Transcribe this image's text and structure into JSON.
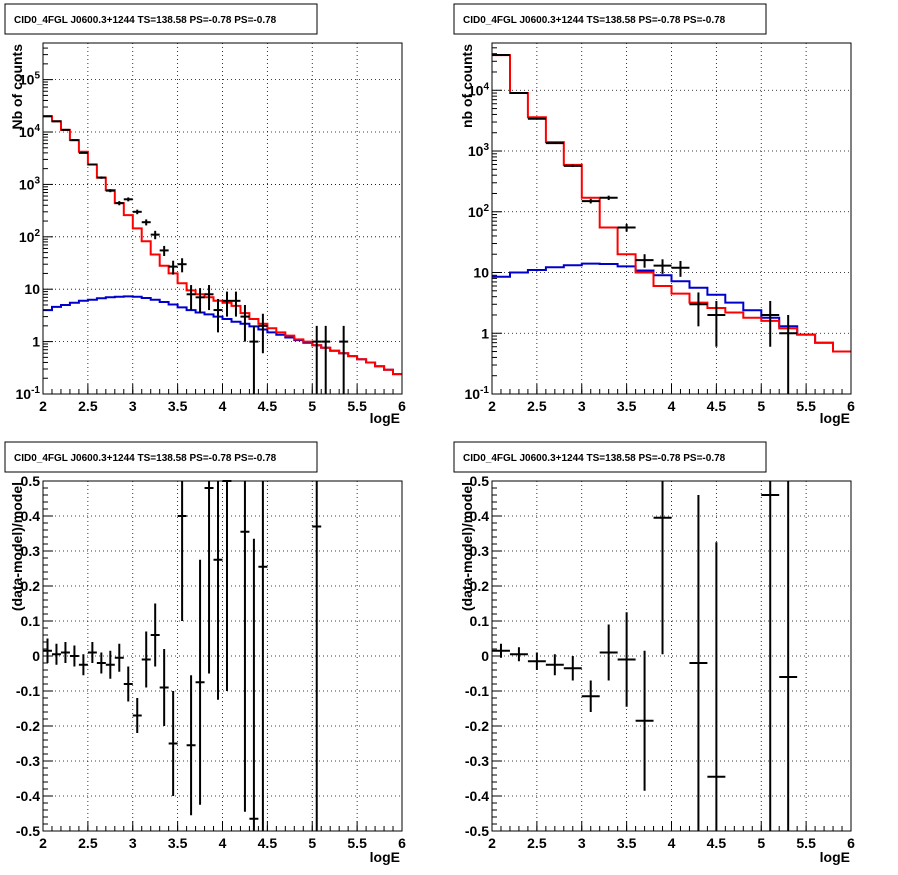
{
  "colors": {
    "data": "#000000",
    "total_model": "#ff0000",
    "background_model": "#0000cc"
  },
  "chart_data": [
    {
      "type": "line",
      "scale": "log",
      "title": "CID0_4FGL J0600.3+1244 TS=138.58 PS=-0.78 PS=-0.78",
      "xlabel": "logE",
      "ylabel": "Nb of counts",
      "xlim": [
        2,
        6
      ],
      "ylim": [
        0.1,
        500000
      ],
      "xticks": [
        "2",
        "2.5",
        "3",
        "3.5",
        "4",
        "4.5",
        "5",
        "5.5",
        "6"
      ],
      "yticks": [
        "10^-1",
        "1",
        "10",
        "10^2",
        "10^3",
        "10^4",
        "10^5"
      ],
      "grid": true,
      "bin_edges": [
        2,
        2.1,
        2.2,
        2.3,
        2.4,
        2.5,
        2.6,
        2.7,
        2.8,
        2.9,
        3,
        3.1,
        3.2,
        3.3,
        3.4,
        3.5,
        3.6,
        3.7,
        3.8,
        3.9,
        4,
        4.1,
        4.2,
        4.3,
        4.4,
        4.5,
        4.6,
        4.7,
        4.8,
        4.9,
        5,
        5.1,
        5.2,
        5.3,
        5.4,
        5.5,
        5.6,
        5.7,
        5.8,
        5.9,
        6
      ],
      "series": [
        {
          "role": "background_model",
          "values": [
            4,
            4.6,
            5,
            5.5,
            6,
            6.3,
            6.7,
            7,
            7.2,
            7.3,
            7.2,
            6.8,
            6.3,
            5.7,
            5.1,
            4.5,
            4,
            3.6,
            3.3,
            3,
            2.7,
            2.4,
            2.2,
            1.95,
            1.7,
            1.5,
            1.35,
            1.2,
            1.07,
            0.95,
            0.85,
            0.76,
            0.67,
            0.6,
            0.53,
            0.46,
            0.4,
            0.34,
            0.29,
            0.24
          ]
        },
        {
          "role": "total_model",
          "values": [
            20000,
            16000,
            11000,
            7000,
            4200,
            2400,
            1350,
            780,
            440,
            260,
            145,
            82,
            46,
            28,
            20,
            13,
            9.5,
            8,
            7,
            6,
            5.5,
            4.8,
            3.5,
            2.7,
            2.2,
            1.8,
            1.5,
            1.3,
            1.1,
            1,
            0.85,
            0.76,
            0.67,
            0.6,
            0.53,
            0.46,
            0.4,
            0.34,
            0.29,
            0.24
          ]
        },
        {
          "role": "data",
          "points": [
            {
              "x": 2.05,
              "y": 20000,
              "err": 300
            },
            {
              "x": 2.15,
              "y": 16000,
              "err": 250
            },
            {
              "x": 2.25,
              "y": 11000,
              "err": 200
            },
            {
              "x": 2.35,
              "y": 7000,
              "err": 160
            },
            {
              "x": 2.45,
              "y": 4000,
              "err": 120
            },
            {
              "x": 2.55,
              "y": 2400,
              "err": 90
            },
            {
              "x": 2.65,
              "y": 1350,
              "err": 70
            },
            {
              "x": 2.75,
              "y": 760,
              "err": 50
            },
            {
              "x": 2.85,
              "y": 440,
              "err": 40
            },
            {
              "x": 2.95,
              "y": 520,
              "err": 45
            },
            {
              "x": 3.05,
              "y": 300,
              "err": 30
            },
            {
              "x": 3.15,
              "y": 190,
              "err": 25
            },
            {
              "x": 3.25,
              "y": 110,
              "err": 20
            },
            {
              "x": 3.35,
              "y": 55,
              "err": 12
            },
            {
              "x": 3.45,
              "y": 27,
              "err": 8
            },
            {
              "x": 3.55,
              "y": 30,
              "err": 9
            },
            {
              "x": 3.65,
              "y": 8,
              "err": 4
            },
            {
              "x": 3.75,
              "y": 7,
              "err": 3.5
            },
            {
              "x": 3.85,
              "y": 8,
              "err": 4
            },
            {
              "x": 3.95,
              "y": 4,
              "err": 2.5
            },
            {
              "x": 4.05,
              "y": 6,
              "err": 3
            },
            {
              "x": 4.15,
              "y": 6,
              "err": 3
            },
            {
              "x": 4.25,
              "y": 3,
              "err": 2
            },
            {
              "x": 4.35,
              "y": 1,
              "err": 1
            },
            {
              "x": 4.45,
              "y": 2,
              "err": 1.4
            },
            {
              "x": 5.05,
              "y": 1,
              "err": 1
            },
            {
              "x": 5.15,
              "y": 1,
              "err": 1
            },
            {
              "x": 5.35,
              "y": 1,
              "err": 1
            }
          ]
        }
      ]
    },
    {
      "type": "line",
      "scale": "log",
      "title": "CID0_4FGL J0600.3+1244 TS=138.58 PS=-0.78 PS=-0.78",
      "xlabel": "logE",
      "ylabel": "nb of counts",
      "xlim": [
        2,
        6
      ],
      "ylim": [
        0.1,
        60000
      ],
      "xticks": [
        "2",
        "2.5",
        "3",
        "3.5",
        "4",
        "4.5",
        "5",
        "5.5",
        "6"
      ],
      "yticks": [
        "10^-1",
        "1",
        "10",
        "10^2",
        "10^3",
        "10^4"
      ],
      "grid": true,
      "bin_edges": [
        2,
        2.2,
        2.4,
        2.6,
        2.8,
        3,
        3.2,
        3.4,
        3.6,
        3.8,
        4,
        4.2,
        4.4,
        4.6,
        4.8,
        5,
        5.2,
        5.4,
        5.6,
        5.8,
        6
      ],
      "series": [
        {
          "role": "background_model",
          "values": [
            8.5,
            10,
            11,
            12.2,
            13.2,
            14,
            13.8,
            12.6,
            10.8,
            9,
            7.2,
            5.6,
            4.3,
            3.2,
            2.4,
            1.8,
            1.3,
            0.95,
            0.7,
            0.5
          ]
        },
        {
          "role": "total_model",
          "values": [
            38000,
            9000,
            3600,
            1400,
            590,
            170,
            55,
            20,
            10,
            6,
            4.5,
            3.2,
            2.6,
            2.2,
            1.8,
            1.6,
            1.2,
            0.95,
            0.7,
            0.5
          ]
        },
        {
          "role": "data",
          "points": [
            {
              "x": 2.1,
              "y": 38000,
              "err": 200
            },
            {
              "x": 2.3,
              "y": 9000,
              "err": 100
            },
            {
              "x": 2.5,
              "y": 3400,
              "err": 60
            },
            {
              "x": 2.7,
              "y": 1350,
              "err": 40
            },
            {
              "x": 2.9,
              "y": 570,
              "err": 25
            },
            {
              "x": 3.1,
              "y": 150,
              "err": 13
            },
            {
              "x": 3.3,
              "y": 170,
              "err": 14
            },
            {
              "x": 3.5,
              "y": 55,
              "err": 8
            },
            {
              "x": 3.7,
              "y": 16,
              "err": 4
            },
            {
              "x": 3.9,
              "y": 13,
              "err": 3.5
            },
            {
              "x": 4.1,
              "y": 12,
              "err": 3.5
            },
            {
              "x": 4.3,
              "y": 3,
              "err": 1.7
            },
            {
              "x": 4.5,
              "y": 2,
              "err": 1.4
            },
            {
              "x": 5.1,
              "y": 2,
              "err": 1.4
            },
            {
              "x": 5.3,
              "y": 1,
              "err": 1
            }
          ]
        }
      ]
    },
    {
      "type": "scatter",
      "title": "CID0_4FGL J0600.3+1244 TS=138.58 PS=-0.78 PS=-0.78",
      "xlabel": "logE",
      "ylabel": "(data-model)/model",
      "xlim": [
        2,
        6
      ],
      "ylim": [
        -0.5,
        0.5
      ],
      "xticks": [
        "2",
        "2.5",
        "3",
        "3.5",
        "4",
        "4.5",
        "5",
        "5.5",
        "6"
      ],
      "yticks": [
        "-0.5",
        "-0.4",
        "-0.3",
        "-0.2",
        "-0.1",
        "0",
        "0.1",
        "0.2",
        "0.3",
        "0.4",
        "0.5"
      ],
      "grid": true,
      "bin_width": 0.1,
      "points": [
        {
          "x": 2.05,
          "y": 0.015,
          "err": 0.035
        },
        {
          "x": 2.15,
          "y": 0.005,
          "err": 0.03
        },
        {
          "x": 2.25,
          "y": 0.01,
          "err": 0.03
        },
        {
          "x": 2.35,
          "y": 0.0,
          "err": 0.03
        },
        {
          "x": 2.45,
          "y": -0.025,
          "err": 0.03
        },
        {
          "x": 2.55,
          "y": 0.01,
          "err": 0.03
        },
        {
          "x": 2.65,
          "y": -0.02,
          "err": 0.03
        },
        {
          "x": 2.75,
          "y": -0.025,
          "err": 0.04
        },
        {
          "x": 2.85,
          "y": -0.005,
          "err": 0.04
        },
        {
          "x": 2.95,
          "y": -0.08,
          "err": 0.05
        },
        {
          "x": 3.05,
          "y": -0.17,
          "err": 0.05
        },
        {
          "x": 3.15,
          "y": -0.01,
          "err": 0.08
        },
        {
          "x": 3.25,
          "y": 0.06,
          "err": 0.09
        },
        {
          "x": 3.35,
          "y": -0.09,
          "err": 0.11
        },
        {
          "x": 3.45,
          "y": -0.25,
          "err": 0.15
        },
        {
          "x": 3.55,
          "y": 0.4,
          "err": 0.3
        },
        {
          "x": 3.65,
          "y": -0.255,
          "err": 0.2
        },
        {
          "x": 3.75,
          "y": -0.075,
          "err": 0.35
        },
        {
          "x": 3.85,
          "y": 0.48,
          "err": 0.53
        },
        {
          "x": 3.95,
          "y": 0.275,
          "err": 0.4
        },
        {
          "x": 4.05,
          "y": 0.5,
          "err": 0.6
        },
        {
          "x": 4.25,
          "y": 0.355,
          "err": 0.8
        },
        {
          "x": 4.35,
          "y": -0.465,
          "err": 0.8
        },
        {
          "x": 4.45,
          "y": 0.255,
          "err": 0.8
        },
        {
          "x": 5.05,
          "y": 0.37,
          "err": 1.0
        }
      ]
    },
    {
      "type": "scatter",
      "title": "CID0_4FGL J0600.3+1244 TS=138.58 PS=-0.78 PS=-0.78",
      "xlabel": "logE",
      "ylabel": "(data-model)/model",
      "xlim": [
        2,
        6
      ],
      "ylim": [
        -0.5,
        0.5
      ],
      "xticks": [
        "2",
        "2.5",
        "3",
        "3.5",
        "4",
        "4.5",
        "5",
        "5.5",
        "6"
      ],
      "yticks": [
        "-0.5",
        "-0.4",
        "-0.3",
        "-0.2",
        "-0.1",
        "0",
        "0.1",
        "0.2",
        "0.3",
        "0.4",
        "0.5"
      ],
      "grid": true,
      "bin_width": 0.2,
      "points": [
        {
          "x": 2.1,
          "y": 0.015,
          "err": 0.02
        },
        {
          "x": 2.3,
          "y": 0.005,
          "err": 0.02
        },
        {
          "x": 2.5,
          "y": -0.015,
          "err": 0.025
        },
        {
          "x": 2.7,
          "y": -0.025,
          "err": 0.03
        },
        {
          "x": 2.9,
          "y": -0.035,
          "err": 0.035
        },
        {
          "x": 3.1,
          "y": -0.115,
          "err": 0.045
        },
        {
          "x": 3.3,
          "y": 0.01,
          "err": 0.08
        },
        {
          "x": 3.5,
          "y": -0.01,
          "err": 0.135
        },
        {
          "x": 3.7,
          "y": -0.185,
          "err": 0.2
        },
        {
          "x": 3.9,
          "y": 0.395,
          "err": 0.39
        },
        {
          "x": 4.3,
          "y": -0.02,
          "err": 0.48
        },
        {
          "x": 4.5,
          "y": -0.345,
          "err": 0.67
        },
        {
          "x": 5.1,
          "y": 0.46,
          "err": 1.0
        },
        {
          "x": 5.3,
          "y": -0.06,
          "err": 1.0
        }
      ]
    }
  ]
}
